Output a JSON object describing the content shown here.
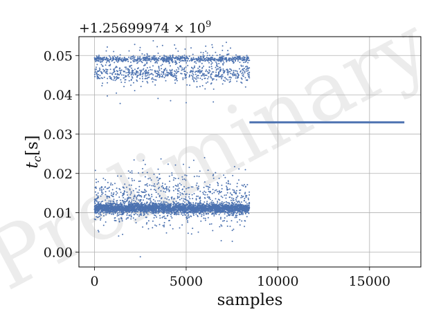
{
  "chart_data": {
    "type": "scatter",
    "title": "",
    "xlabel": "samples",
    "ylabel": "t_c[s]",
    "offset_text": "+1.25699974 × 10^9",
    "watermark": "Preliminary",
    "xlim": [
      -850,
      17800
    ],
    "ylim": [
      -0.0038,
      0.0548
    ],
    "xticks": [
      0,
      5000,
      10000,
      15000
    ],
    "yticks": [
      0.0,
      0.01,
      0.02,
      0.03,
      0.04,
      0.05
    ],
    "xtick_labels": [
      "0",
      "5000",
      "10000",
      "15000"
    ],
    "ytick_labels": [
      "0.00",
      "0.01",
      "0.02",
      "0.03",
      "0.04",
      "0.05"
    ],
    "grid": true,
    "series": [
      {
        "color": "#4c72b0",
        "marker_size": 1,
        "clusters": [
          {
            "x_range": [
              0,
              8450
            ],
            "y_center": 0.0111,
            "y_spread": 0.0006,
            "fraction": 0.55
          },
          {
            "x_range": [
              0,
              8450
            ],
            "y_center": 0.012,
            "y_spread": 0.003,
            "fraction": 0.12
          },
          {
            "x_range": [
              0,
              8450
            ],
            "y_center": 0.015,
            "y_spread": 0.0035,
            "fraction": 0.06
          },
          {
            "x_range": [
              0,
              8450
            ],
            "y_center": 0.0491,
            "y_spread": 0.0004,
            "fraction": 0.13
          },
          {
            "x_range": [
              0,
              8450
            ],
            "y_center": 0.0455,
            "y_spread": 0.001,
            "fraction": 0.1
          },
          {
            "x_range": [
              0,
              8450
            ],
            "y_center": 0.047,
            "y_spread": 0.003,
            "fraction": 0.04
          }
        ],
        "constant_segment": {
          "x_range": [
            8450,
            16900
          ],
          "y": 0.033
        },
        "outliers": [
          {
            "x": 2500,
            "y": -0.0012
          },
          {
            "x": 1400,
            "y": 0.0378
          },
          {
            "x": 5000,
            "y": 0.038
          },
          {
            "x": 4150,
            "y": 0.0385
          },
          {
            "x": 700,
            "y": 0.0397
          },
          {
            "x": 2400,
            "y": 0.0201
          },
          {
            "x": 6600,
            "y": 0.0202
          },
          {
            "x": 3550,
            "y": 0.007
          },
          {
            "x": 6900,
            "y": 0.0069
          }
        ]
      }
    ]
  }
}
